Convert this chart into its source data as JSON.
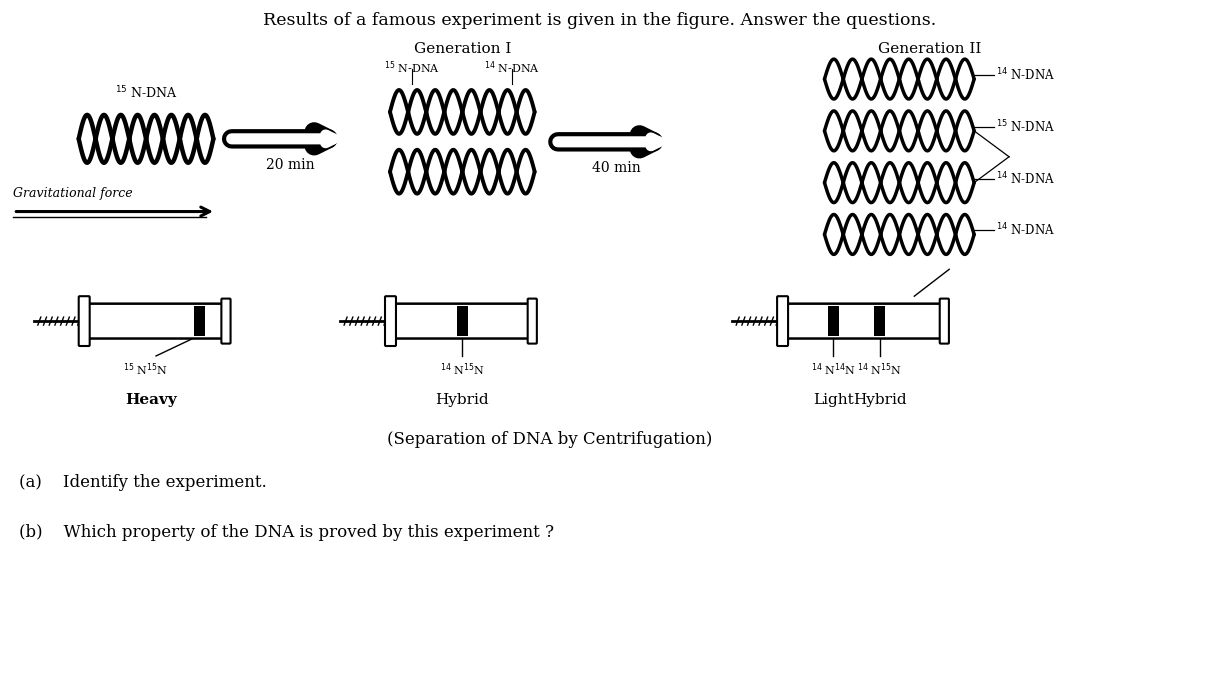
{
  "bg_color": "#ffffff",
  "title": "Results of a famous experiment is given in the figure. Answer the questions.",
  "gen1_label": "Generation I",
  "gen2_label": "Generation II",
  "arrow1_label": "20 min",
  "arrow2_label": "40 min",
  "grav_label": "Gravitational force",
  "sep_label": "(Separation of DNA by Centrifugation)",
  "qa": "(a)    Identify the experiment.",
  "qb": "(b)    Which property of the DNA is proved by this experiment ?",
  "heavy_label": "Heavy",
  "hybrid1_label": "Hybrid",
  "light_label": "Light",
  "hybrid2_label": "Hybrid"
}
